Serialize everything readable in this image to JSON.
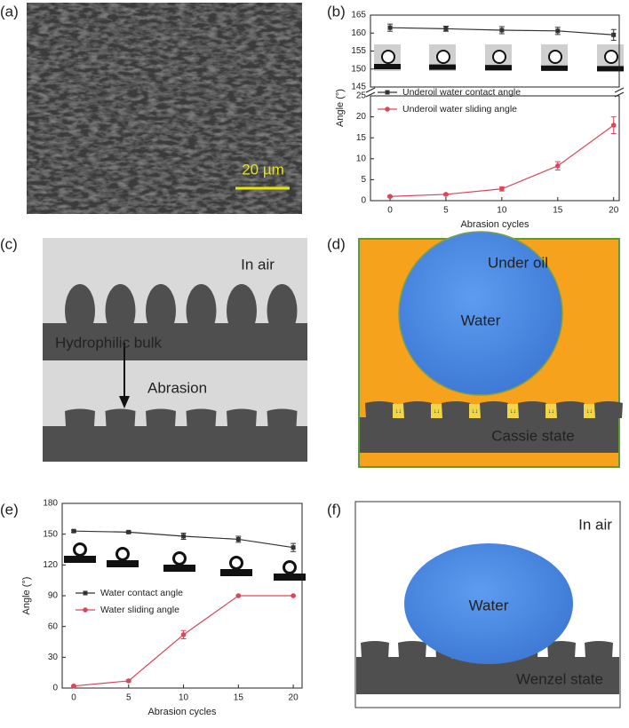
{
  "panels": [
    "(a)",
    "(b)",
    "(c)",
    "(d)",
    "(e)",
    "(f)"
  ],
  "scale_bar": "20 µm",
  "diagrams": {
    "c": {
      "condition": "In air",
      "bulk": "Hydrophilic bulk",
      "process": "Abrasion"
    },
    "d": {
      "condition": "Under oil",
      "droplet": "Water",
      "state": "Cassie state"
    },
    "f": {
      "condition": "In air",
      "droplet": "Water",
      "state": "Wenzel state"
    }
  },
  "chart_data": [
    {
      "type": "line",
      "xlabel": "Abrasion cycles",
      "ylabel": "Angle (°)",
      "x": [
        0,
        5,
        10,
        15,
        20
      ],
      "xlim": [
        -1.75,
        20.5
      ],
      "xticks": [
        0,
        5,
        10,
        15,
        20
      ],
      "ylim": [
        0,
        25
      ],
      "yticks": [
        0,
        5,
        10,
        15,
        20,
        25
      ],
      "ylim_top": [
        145,
        165
      ],
      "yticks_top": [
        145,
        150,
        155,
        160,
        165
      ],
      "series": [
        {
          "name": "Underoil water contact angle",
          "color": "#333333",
          "marker": "square",
          "axis": "top",
          "values": [
            161.5,
            161.2,
            160.8,
            160.6,
            159.5
          ],
          "errors": [
            1.0,
            0.7,
            1.0,
            1.0,
            1.5
          ]
        },
        {
          "name": "Underoil water sliding angle",
          "color": "#d9475a",
          "marker": "circle",
          "values": [
            1.0,
            1.5,
            2.8,
            8.3,
            18.0
          ],
          "errors": [
            0.2,
            0.2,
            0.5,
            1.0,
            2.0
          ]
        }
      ]
    },
    {
      "type": "line",
      "xlabel": "Abrasion cycles",
      "ylabel": "Angle (°)",
      "x": [
        0,
        5,
        10,
        15,
        20
      ],
      "xlim": [
        -1.05,
        20.8
      ],
      "xticks": [
        0,
        5,
        10,
        15,
        20
      ],
      "ylim": [
        0,
        180
      ],
      "yticks": [
        0,
        30,
        60,
        90,
        120,
        150,
        180
      ],
      "series": [
        {
          "name": "Water contact angle",
          "color": "#333333",
          "marker": "square",
          "values": [
            153,
            152,
            148,
            145,
            137
          ],
          "errors": [
            1,
            1,
            3,
            3,
            4
          ]
        },
        {
          "name": "Water sliding angle",
          "color": "#d9475a",
          "marker": "circle",
          "values": [
            2,
            7,
            52,
            90,
            90
          ],
          "errors": [
            0.5,
            1,
            4,
            0,
            0
          ]
        }
      ]
    }
  ]
}
